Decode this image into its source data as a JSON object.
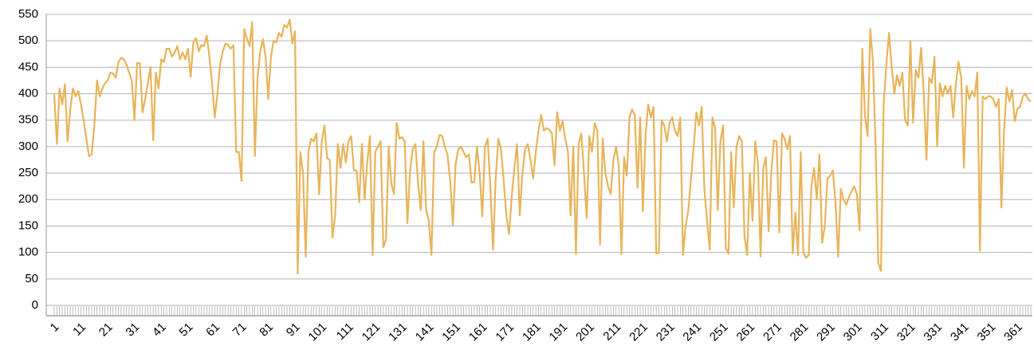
{
  "chart_data": {
    "type": "line",
    "color": "#e8b45a",
    "grid": true,
    "ylim": [
      0,
      550
    ],
    "yticks": [
      0,
      50,
      100,
      150,
      200,
      250,
      300,
      350,
      400,
      450,
      500,
      550
    ],
    "categories": [
      "1",
      null,
      null,
      null,
      null,
      null,
      null,
      null,
      null,
      null,
      "11",
      null,
      null,
      null,
      null,
      null,
      null,
      null,
      null,
      null,
      "21",
      null,
      null,
      null,
      null,
      null,
      null,
      null,
      null,
      null,
      "31",
      null,
      null,
      null,
      null,
      null,
      null,
      null,
      null,
      null,
      "41",
      null,
      null,
      null,
      null,
      null,
      null,
      null,
      null,
      null,
      "51",
      null,
      null,
      null,
      null,
      null,
      null,
      null,
      null,
      null,
      "61",
      null,
      null,
      null,
      null,
      null,
      null,
      null,
      null,
      null,
      "71",
      null,
      null,
      null,
      null,
      null,
      null,
      null,
      null,
      null,
      "81",
      null,
      null,
      null,
      null,
      null,
      null,
      null,
      null,
      null,
      "91",
      null,
      null,
      null,
      null,
      null,
      null,
      null,
      null,
      null,
      "101",
      null,
      null,
      null,
      null,
      null,
      null,
      null,
      null,
      null,
      "111",
      null,
      null,
      null,
      null,
      null,
      null,
      null,
      null,
      null,
      "121",
      null,
      null,
      null,
      null,
      null,
      null,
      null,
      null,
      null,
      "131",
      null,
      null,
      null,
      null,
      null,
      null,
      null,
      null,
      null,
      "141",
      null,
      null,
      null,
      null,
      null,
      null,
      null,
      null,
      null,
      "151",
      null,
      null,
      null,
      null,
      null,
      null,
      null,
      null,
      null,
      "161",
      null,
      null,
      null,
      null,
      null,
      null,
      null,
      null,
      null,
      "171",
      null,
      null,
      null,
      null,
      null,
      null,
      null,
      null,
      null,
      "181",
      null,
      null,
      null,
      null,
      null,
      null,
      null,
      null,
      null,
      "191",
      null,
      null,
      null,
      null,
      null,
      null,
      null,
      null,
      null,
      "201",
      null,
      null,
      null,
      null,
      null,
      null,
      null,
      null,
      null,
      "211",
      null,
      null,
      null,
      null,
      null,
      null,
      null,
      null,
      null,
      "221",
      null,
      null,
      null,
      null,
      null,
      null,
      null,
      null,
      null,
      "231",
      null,
      null,
      null,
      null,
      null,
      null,
      null,
      null,
      null,
      "241",
      null,
      null,
      null,
      null,
      null,
      null,
      null,
      null,
      null,
      "251",
      null,
      null,
      null,
      null,
      null,
      null,
      null,
      null,
      null,
      "261",
      null,
      null,
      null,
      null,
      null,
      null,
      null,
      null,
      null,
      "271",
      null,
      null,
      null,
      null,
      null,
      null,
      null,
      null,
      null,
      "281",
      null,
      null,
      null,
      null,
      null,
      null,
      null,
      null,
      null,
      "291",
      null,
      null,
      null,
      null,
      null,
      null,
      null,
      null,
      null,
      "301",
      null,
      null,
      null,
      null,
      null,
      null,
      null,
      null,
      null,
      "311",
      null,
      null,
      null,
      null,
      null,
      null,
      null,
      null,
      null,
      "321",
      null,
      null,
      null,
      null,
      null,
      null,
      null,
      null,
      null,
      "331",
      null,
      null,
      null,
      null,
      null,
      null,
      null,
      null,
      null,
      "341",
      null,
      null,
      null,
      null,
      null,
      null,
      null,
      null,
      null,
      "351",
      null,
      null,
      null,
      null,
      null,
      null,
      null,
      null,
      null,
      "361",
      null,
      null,
      null,
      null,
      null
    ],
    "values": [
      400,
      305,
      410,
      380,
      418,
      310,
      370,
      410,
      395,
      405,
      380,
      350,
      315,
      282,
      285,
      340,
      425,
      395,
      410,
      420,
      425,
      440,
      438,
      430,
      460,
      468,
      465,
      455,
      440,
      425,
      350,
      458,
      458,
      365,
      390,
      420,
      450,
      312,
      440,
      410,
      465,
      460,
      485,
      485,
      470,
      478,
      490,
      465,
      478,
      465,
      485,
      432,
      497,
      505,
      480,
      492,
      490,
      510,
      470,
      420,
      355,
      400,
      455,
      480,
      495,
      492,
      485,
      492,
      290,
      290,
      235,
      522,
      505,
      490,
      535,
      282,
      430,
      480,
      503,
      470,
      390,
      470,
      500,
      497,
      515,
      508,
      530,
      525,
      540,
      495,
      518,
      60,
      290,
      250,
      92,
      290,
      315,
      310,
      325,
      210,
      310,
      340,
      278,
      275,
      128,
      170,
      305,
      260,
      305,
      270,
      310,
      320,
      255,
      255,
      195,
      305,
      200,
      270,
      320,
      95,
      290,
      300,
      310,
      110,
      125,
      300,
      230,
      210,
      345,
      315,
      318,
      310,
      155,
      255,
      295,
      305,
      230,
      180,
      310,
      180,
      160,
      95,
      290,
      300,
      322,
      320,
      300,
      285,
      235,
      152,
      265,
      295,
      300,
      290,
      280,
      285,
      232,
      233,
      300,
      250,
      168,
      300,
      315,
      225,
      105,
      240,
      315,
      295,
      235,
      170,
      135,
      205,
      260,
      305,
      170,
      250,
      295,
      305,
      275,
      240,
      290,
      330,
      360,
      330,
      335,
      332,
      325,
      265,
      365,
      330,
      348,
      315,
      290,
      170,
      300,
      97,
      305,
      325,
      250,
      165,
      320,
      290,
      345,
      330,
      115,
      315,
      250,
      225,
      210,
      275,
      300,
      265,
      97,
      280,
      245,
      355,
      370,
      360,
      222,
      355,
      178,
      320,
      380,
      355,
      375,
      98,
      100,
      350,
      340,
      310,
      345,
      355,
      330,
      320,
      355,
      95,
      150,
      180,
      240,
      300,
      365,
      340,
      375,
      220,
      160,
      105,
      355,
      335,
      180,
      310,
      340,
      108,
      98,
      290,
      185,
      300,
      320,
      310,
      130,
      95,
      250,
      160,
      310,
      270,
      92,
      260,
      280,
      140,
      250,
      312,
      310,
      138,
      325,
      315,
      295,
      320,
      98,
      175,
      95,
      290,
      100,
      90,
      95,
      225,
      260,
      200,
      285,
      118,
      150,
      240,
      245,
      255,
      195,
      92,
      220,
      200,
      190,
      205,
      215,
      225,
      210,
      142,
      485,
      360,
      320,
      522,
      460,
      300,
      80,
      65,
      380,
      455,
      515,
      450,
      400,
      435,
      415,
      440,
      350,
      340,
      500,
      345,
      445,
      430,
      487,
      400,
      275,
      430,
      420,
      470,
      300,
      420,
      395,
      415,
      400,
      415,
      355,
      420,
      460,
      430,
      260,
      415,
      390,
      405,
      395,
      440,
      103,
      395,
      390,
      395,
      395,
      390,
      375,
      390,
      185,
      330,
      412,
      385,
      407,
      348,
      372,
      375,
      395,
      400,
      390,
      385
    ]
  }
}
